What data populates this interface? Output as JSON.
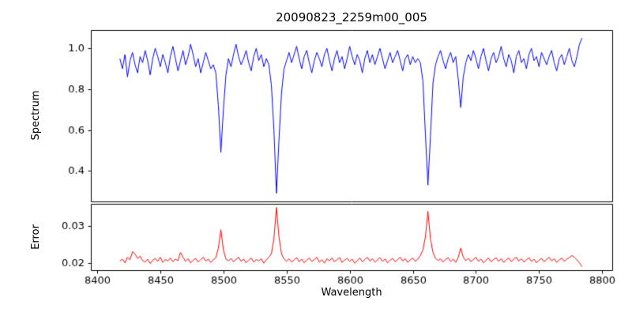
{
  "chart_data": [
    {
      "type": "line",
      "title": "20090823_2259m00_005",
      "ylabel": "Spectrum",
      "color": "#0000ff",
      "x_start": 8418,
      "x_step": 2,
      "xlim": [
        8395,
        8808
      ],
      "ylim": [
        0.25,
        1.09
      ],
      "yticks": [
        0.4,
        0.6,
        0.8,
        1.0
      ],
      "ytick_labels": [
        "0.4",
        "0.6",
        "0.8",
        "1.0"
      ],
      "grid": false,
      "legend": "none",
      "values": [
        0.95,
        0.9,
        0.97,
        0.86,
        0.94,
        0.98,
        0.92,
        0.88,
        0.96,
        0.93,
        0.99,
        0.94,
        0.87,
        0.95,
        1.0,
        0.96,
        0.91,
        0.97,
        0.93,
        0.88,
        0.96,
        1.01,
        0.95,
        0.89,
        0.94,
        0.99,
        0.92,
        0.96,
        1.02,
        0.97,
        0.91,
        0.95,
        0.88,
        0.93,
        0.98,
        0.94,
        0.9,
        0.92,
        0.88,
        0.72,
        0.49,
        0.7,
        0.87,
        0.95,
        0.91,
        0.97,
        1.02,
        0.96,
        0.92,
        0.95,
        0.99,
        0.93,
        0.89,
        0.96,
        1.0,
        0.94,
        0.97,
        0.91,
        0.95,
        0.92,
        0.82,
        0.6,
        0.29,
        0.55,
        0.78,
        0.9,
        0.94,
        0.98,
        0.93,
        0.97,
        1.01,
        0.95,
        0.9,
        0.96,
        0.99,
        0.93,
        0.88,
        0.94,
        0.98,
        0.95,
        0.91,
        0.97,
        1.0,
        0.94,
        0.89,
        0.95,
        0.99,
        0.93,
        0.96,
        0.9,
        0.95,
        1.01,
        0.96,
        0.92,
        0.97,
        0.94,
        0.88,
        0.95,
        0.99,
        0.93,
        0.97,
        0.92,
        0.96,
        1.0,
        0.95,
        0.9,
        0.94,
        0.98,
        0.93,
        0.96,
        0.99,
        0.94,
        0.89,
        0.95,
        0.97,
        0.92,
        0.96,
        0.93,
        0.95,
        0.93,
        0.84,
        0.58,
        0.33,
        0.57,
        0.83,
        0.92,
        0.96,
        0.99,
        0.94,
        0.9,
        0.95,
        0.98,
        0.93,
        0.96,
        0.85,
        0.71,
        0.86,
        0.93,
        0.97,
        0.94,
        0.99,
        0.95,
        0.9,
        0.96,
        1.0,
        0.94,
        0.89,
        0.95,
        0.98,
        0.93,
        0.96,
        1.01,
        0.95,
        0.91,
        0.97,
        0.94,
        0.88,
        0.96,
        0.99,
        0.93,
        0.95,
        0.9,
        0.97,
        1.0,
        0.94,
        0.96,
        0.91,
        0.98,
        0.95,
        0.92,
        0.96,
        0.99,
        0.93,
        0.89,
        0.95,
        0.97,
        0.92,
        0.96,
        1.0,
        0.94,
        0.91,
        0.96,
        1.02,
        1.05
      ]
    },
    {
      "type": "line",
      "ylabel": "Error",
      "xlabel": "Wavelength",
      "color": "#ff0000",
      "x_start": 8418,
      "x_step": 2,
      "xlim": [
        8395,
        8808
      ],
      "ylim": [
        0.018,
        0.036
      ],
      "yticks": [
        0.02,
        0.03
      ],
      "ytick_labels": [
        "0.02",
        "0.03"
      ],
      "xticks": [
        8400,
        8450,
        8500,
        8550,
        8600,
        8650,
        8700,
        8750,
        8800
      ],
      "xtick_labels": [
        "8400",
        "8450",
        "8500",
        "8550",
        "8600",
        "8650",
        "8700",
        "8750",
        "8800"
      ],
      "grid": false,
      "legend": "none",
      "values": [
        0.0205,
        0.021,
        0.02,
        0.0215,
        0.0208,
        0.023,
        0.0224,
        0.0212,
        0.0218,
        0.0206,
        0.0202,
        0.021,
        0.0198,
        0.0207,
        0.0212,
        0.0204,
        0.0215,
        0.0201,
        0.0209,
        0.0205,
        0.0213,
        0.0203,
        0.021,
        0.0206,
        0.0228,
        0.0215,
        0.0204,
        0.0211,
        0.02,
        0.0207,
        0.0212,
        0.0202,
        0.0209,
        0.0215,
        0.0205,
        0.021,
        0.0201,
        0.0208,
        0.0214,
        0.024,
        0.029,
        0.0235,
        0.021,
        0.0205,
        0.0212,
        0.0203,
        0.0209,
        0.0215,
        0.0204,
        0.021,
        0.02,
        0.0207,
        0.0213,
        0.0202,
        0.0209,
        0.0205,
        0.0211,
        0.0199,
        0.0208,
        0.0215,
        0.0225,
        0.0265,
        0.035,
        0.027,
        0.0225,
        0.021,
        0.0204,
        0.0211,
        0.0202,
        0.0208,
        0.0214,
        0.0203,
        0.021,
        0.02,
        0.0207,
        0.0213,
        0.0204,
        0.0209,
        0.0215,
        0.0202,
        0.0208,
        0.0199,
        0.0211,
        0.0205,
        0.0213,
        0.0203,
        0.0209,
        0.0214,
        0.0201,
        0.0207,
        0.0212,
        0.0204,
        0.021,
        0.0199,
        0.0206,
        0.0213,
        0.0203,
        0.0209,
        0.0215,
        0.0205,
        0.0211,
        0.0202,
        0.0208,
        0.0214,
        0.0204,
        0.021,
        0.02,
        0.0207,
        0.0212,
        0.0203,
        0.0209,
        0.0215,
        0.0205,
        0.0211,
        0.0201,
        0.0208,
        0.0213,
        0.0204,
        0.021,
        0.022,
        0.0235,
        0.027,
        0.034,
        0.0265,
        0.0228,
        0.0212,
        0.0206,
        0.0211,
        0.0202,
        0.0209,
        0.0214,
        0.0204,
        0.021,
        0.0201,
        0.0215,
        0.024,
        0.0215,
        0.0206,
        0.0212,
        0.0203,
        0.0209,
        0.0215,
        0.0204,
        0.021,
        0.02,
        0.0207,
        0.0213,
        0.0203,
        0.0209,
        0.0214,
        0.0204,
        0.0211,
        0.0201,
        0.0208,
        0.0213,
        0.0203,
        0.021,
        0.0215,
        0.0205,
        0.0211,
        0.0202,
        0.0208,
        0.0214,
        0.0204,
        0.021,
        0.02,
        0.0207,
        0.0212,
        0.0203,
        0.0209,
        0.0215,
        0.0205,
        0.0211,
        0.0201,
        0.0208,
        0.0213,
        0.0204,
        0.021,
        0.0214,
        0.022,
        0.0215,
        0.0208,
        0.02,
        0.019
      ]
    }
  ]
}
